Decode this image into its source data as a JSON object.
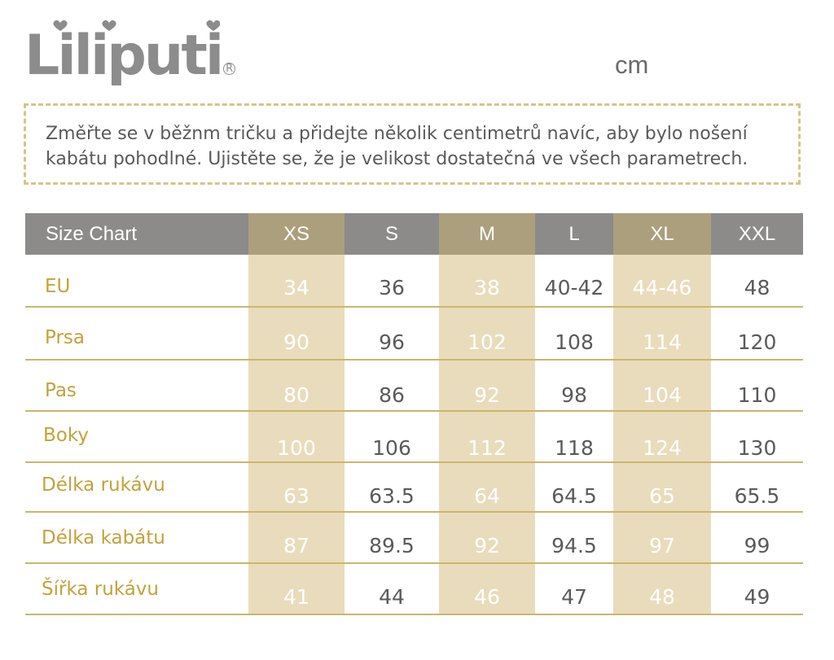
{
  "brand": {
    "name": "Liliputi",
    "registered": "R"
  },
  "unit": "cm",
  "note": {
    "line1": "Změřte se v běžnm tričku a přidejte několik centimetrů navíc, aby bylo nošení",
    "line2": "kabátu pohodlné. Ujistěte se, že je velikost dostatečná ve všech parametrech."
  },
  "colors": {
    "header_gray": "#8c8b8a",
    "header_highlight": "#ab9f7d",
    "column_highlight": "#e9dcbc",
    "label_gold": "#c4a13a",
    "rule_gold": "#cbb66c",
    "logo_gray": "#8c8c8c"
  },
  "table": {
    "title": "Size Chart",
    "sizes": [
      "XS",
      "S",
      "M",
      "L",
      "XL",
      "XXL"
    ],
    "highlighted_sizes": [
      "XS",
      "M",
      "XL"
    ],
    "rows": [
      {
        "label": "EU",
        "values": [
          "34",
          "36",
          "38",
          "40-42",
          "44-46",
          "48"
        ]
      },
      {
        "label": "Prsa",
        "values": [
          "90",
          "96",
          "102",
          "108",
          "114",
          "120"
        ]
      },
      {
        "label": "Pas",
        "values": [
          "80",
          "86",
          "92",
          "98",
          "104",
          "110"
        ]
      },
      {
        "label": "Boky",
        "values": [
          "100",
          "106",
          "112",
          "118",
          "124",
          "130"
        ]
      },
      {
        "label": "Délka rukávu",
        "values": [
          "63",
          "63.5",
          "64",
          "64.5",
          "65",
          "65.5"
        ]
      },
      {
        "label": "Délka kabátu",
        "values": [
          "87",
          "89.5",
          "92",
          "94.5",
          "97",
          "99"
        ]
      },
      {
        "label": "Šířka rukávu",
        "values": [
          "41",
          "44",
          "46",
          "47",
          "48",
          "49"
        ]
      }
    ]
  }
}
